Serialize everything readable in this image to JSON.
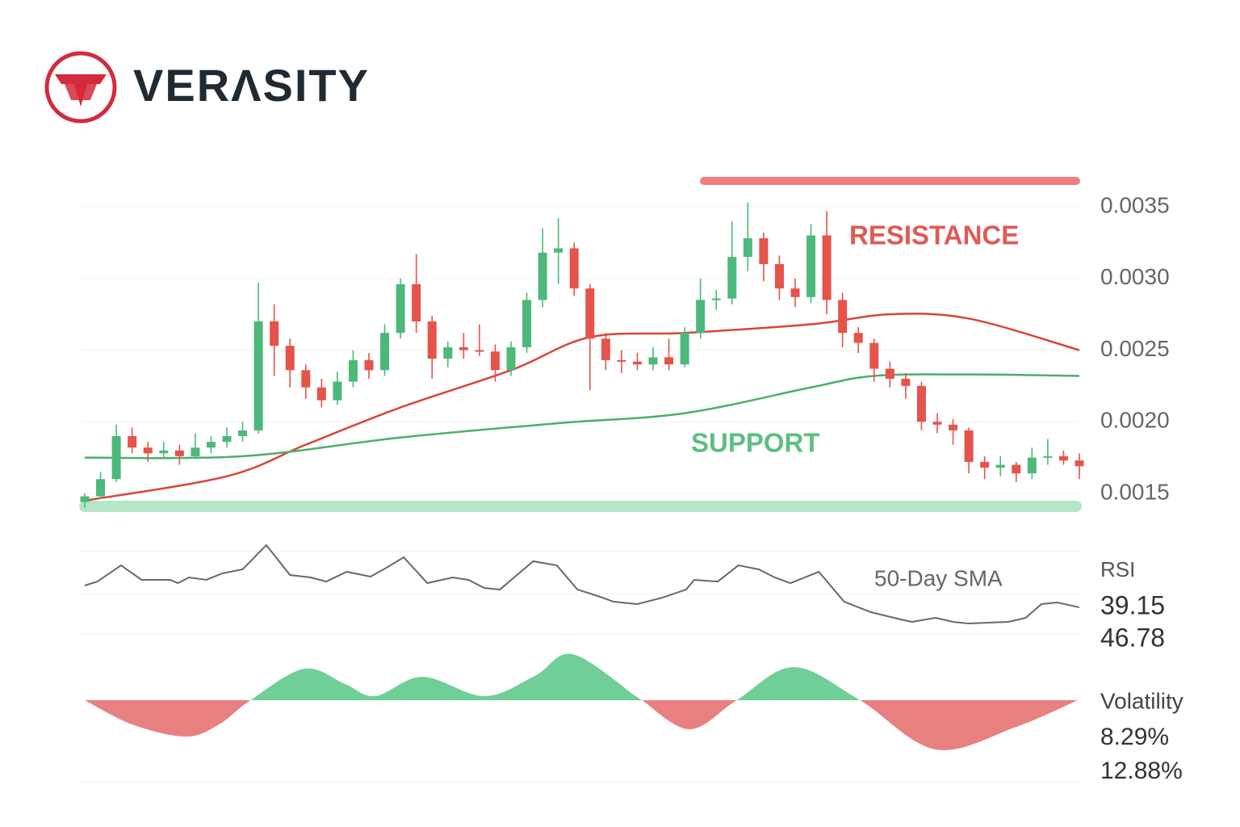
{
  "brand": "VERΛSITY",
  "chart_data": [
    {
      "type": "candlestick",
      "up_color": "#4cb87a",
      "down_color": "#e5534b",
      "open": [
        0.00144,
        0.00148,
        0.0016,
        0.0019,
        0.00182,
        0.00178,
        0.0018,
        0.00176,
        0.00182,
        0.00186,
        0.0019,
        0.00194,
        0.0027,
        0.00253,
        0.00236,
        0.00224,
        0.00215,
        0.00228,
        0.00243,
        0.00236,
        0.00262,
        0.00296,
        0.0027,
        0.00244,
        0.00252,
        0.0025,
        0.00249,
        0.00236,
        0.00252,
        0.00285,
        0.00318,
        0.00321,
        0.00293,
        0.00258,
        0.00243,
        0.00242,
        0.0024,
        0.00245,
        0.0024,
        0.00262,
        0.00285,
        0.00286,
        0.00315,
        0.00328,
        0.0031,
        0.00293,
        0.00287,
        0.0033,
        0.00285,
        0.00262,
        0.00255,
        0.00237,
        0.0023,
        0.00225,
        0.002,
        0.00198,
        0.00194,
        0.00172,
        0.00168,
        0.0017,
        0.00164,
        0.00175,
        0.00176,
        0.00173
      ],
      "high": [
        0.0015,
        0.00165,
        0.00198,
        0.00196,
        0.00186,
        0.00186,
        0.00184,
        0.00192,
        0.0019,
        0.00196,
        0.002,
        0.00297,
        0.00282,
        0.00258,
        0.0024,
        0.0023,
        0.00235,
        0.0025,
        0.00248,
        0.00268,
        0.003,
        0.00317,
        0.00274,
        0.00256,
        0.00262,
        0.00268,
        0.00254,
        0.00256,
        0.0029,
        0.00335,
        0.00342,
        0.00325,
        0.00296,
        0.00262,
        0.0025,
        0.00248,
        0.00252,
        0.00258,
        0.00266,
        0.003,
        0.00292,
        0.0034,
        0.00353,
        0.00332,
        0.00316,
        0.003,
        0.00338,
        0.00347,
        0.0029,
        0.00266,
        0.00258,
        0.00242,
        0.00234,
        0.00228,
        0.00206,
        0.00202,
        0.00196,
        0.00176,
        0.00176,
        0.00172,
        0.00182,
        0.00188,
        0.0018,
        0.00178
      ],
      "low": [
        0.0014,
        0.00146,
        0.00158,
        0.00178,
        0.00172,
        0.00174,
        0.0017,
        0.00174,
        0.00178,
        0.00182,
        0.00186,
        0.00192,
        0.00232,
        0.00224,
        0.00216,
        0.0021,
        0.00212,
        0.00224,
        0.0023,
        0.00232,
        0.00258,
        0.00262,
        0.0023,
        0.00238,
        0.00244,
        0.00246,
        0.00228,
        0.00232,
        0.00248,
        0.0028,
        0.00296,
        0.00288,
        0.00222,
        0.00236,
        0.00234,
        0.00236,
        0.00236,
        0.00236,
        0.00238,
        0.00258,
        0.00278,
        0.00282,
        0.00305,
        0.00298,
        0.00285,
        0.0028,
        0.00283,
        0.00275,
        0.00252,
        0.00248,
        0.00228,
        0.00224,
        0.00216,
        0.00194,
        0.00192,
        0.00184,
        0.00164,
        0.0016,
        0.00162,
        0.00158,
        0.0016,
        0.0017,
        0.0017,
        0.0016
      ],
      "close": [
        0.00148,
        0.0016,
        0.0019,
        0.00182,
        0.00178,
        0.0018,
        0.00176,
        0.00182,
        0.00186,
        0.0019,
        0.00194,
        0.0027,
        0.00253,
        0.00236,
        0.00224,
        0.00215,
        0.00228,
        0.00243,
        0.00236,
        0.00262,
        0.00296,
        0.0027,
        0.00244,
        0.00252,
        0.0025,
        0.00249,
        0.00236,
        0.00252,
        0.00285,
        0.00318,
        0.00321,
        0.00293,
        0.00258,
        0.00243,
        0.00242,
        0.0024,
        0.00245,
        0.0024,
        0.00262,
        0.00285,
        0.00286,
        0.00315,
        0.00328,
        0.0031,
        0.00293,
        0.00287,
        0.0033,
        0.00285,
        0.00262,
        0.00255,
        0.00237,
        0.0023,
        0.00225,
        0.002,
        0.00198,
        0.00194,
        0.00172,
        0.00168,
        0.0017,
        0.00164,
        0.00175,
        0.00176,
        0.00173,
        0.00169
      ],
      "xlim": [
        0,
        63
      ],
      "ylim": [
        0.0013,
        0.0037
      ],
      "yticks": [
        0.0015,
        {
          "value": 0.002,
          "label": "0.0020"
        },
        0.0025,
        {
          "value": 0.003,
          "label": "0.0030"
        },
        0.0035
      ],
      "grid": true,
      "moving_averages": [
        {
          "color": "#d9443a",
          "x": [
            0,
            9,
            14,
            20,
            27,
            32,
            38,
            46,
            51,
            56,
            63
          ],
          "values": [
            0.00145,
            0.00162,
            0.00184,
            0.0021,
            0.00236,
            0.00259,
            0.00262,
            0.00268,
            0.00275,
            0.00272,
            0.0025
          ]
        },
        {
          "color": "#4caf6a",
          "x": [
            0,
            10,
            20,
            30,
            38,
            46,
            50,
            56,
            63
          ],
          "values": [
            0.00175,
            0.00176,
            0.00189,
            0.00199,
            0.00206,
            0.00224,
            0.00232,
            0.00233,
            0.00232
          ]
        }
      ],
      "resistance": {
        "label": "RESISTANCE",
        "value": 0.00368,
        "color": "#f08080",
        "text_color": "#e05a55"
      },
      "support": {
        "label": "SUPPORT",
        "value": 0.00141,
        "color": "#b5e6c6",
        "text_color": "#5cbf7f"
      }
    },
    {
      "type": "line",
      "title": "RSI",
      "annotation": "50-Day SMA",
      "color": "#5f6b6d",
      "xlim": [
        0,
        63
      ],
      "ylim": [
        0,
        100
      ],
      "x": [
        0,
        0.8,
        2.3,
        3.6,
        5.4,
        5.9,
        6.6,
        7.7,
        8.7,
        10,
        11.5,
        13,
        14.3,
        15.3,
        16.6,
        18.1,
        19.2,
        20.2,
        21.7,
        23.3,
        24.3,
        25.3,
        26.3,
        28.4,
        29.9,
        31.2,
        32.5,
        33.5,
        35,
        36.6,
        38.1,
        38.6,
        40.1,
        41.4,
        42.7,
        43.7,
        44.7,
        46.5,
        48.1,
        49.8,
        51.9,
        52.4,
        53.9,
        55,
        56,
        58.5,
        59.6,
        60.6,
        61.6,
        63
      ],
      "values": [
        50,
        53.8,
        69.2,
        55.4,
        55.4,
        52.3,
        57.7,
        55.4,
        61.5,
        65.4,
        88.5,
        60,
        57.7,
        53.8,
        63.1,
        58.5,
        67.7,
        76.9,
        52.3,
        57.7,
        55.4,
        47.7,
        46.2,
        73.1,
        69.2,
        46.2,
        40,
        34.6,
        32.3,
        38.5,
        46.2,
        55.4,
        53.8,
        69.2,
        65.4,
        57.7,
        52.3,
        63.1,
        34.6,
        24.6,
        16.9,
        15.4,
        19.2,
        15.4,
        13.8,
        15.4,
        19.2,
        32.3,
        33.8,
        29.2
      ],
      "readings": [
        39.15,
        46.78
      ]
    },
    {
      "type": "area",
      "title": "Volatility",
      "positive_color": "#6fcf97",
      "negative_color": "#e88080",
      "xlim": [
        0,
        63
      ],
      "ylim": [
        -70,
        70
      ],
      "x": [
        0,
        3,
        6.4,
        8.5,
        10.5,
        13.9,
        16.5,
        18.4,
        21.4,
        25.3,
        28.5,
        30.9,
        34.9,
        35.3,
        38.3,
        41.3,
        44.9,
        49.1,
        53.9,
        59,
        62.9
      ],
      "values": [
        0,
        -30,
        -45,
        -30,
        0,
        39,
        20,
        5,
        29,
        5,
        30,
        57,
        5,
        0,
        -36,
        0,
        41,
        0,
        -61,
        -33,
        0
      ],
      "readings": {
        "values": [
          8.29,
          12.88
        ],
        "value_labels": [
          "8.29%",
          "12.88%"
        ]
      }
    }
  ]
}
